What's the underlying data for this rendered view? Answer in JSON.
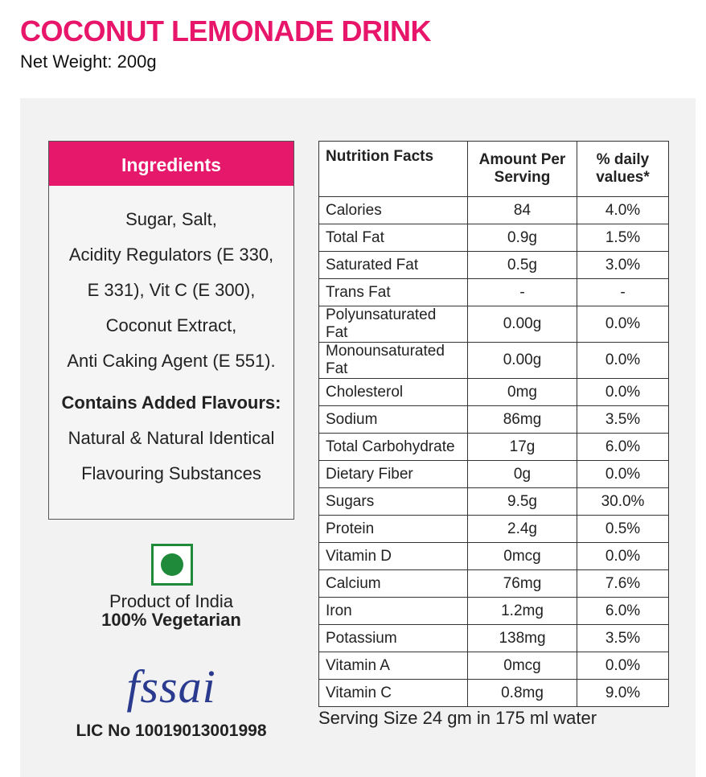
{
  "header": {
    "title": "COCONUT LEMONADE DRINK",
    "subtitle": "Net Weight: 200g"
  },
  "ingredients": {
    "title": "Ingredients",
    "lines": [
      "Sugar, Salt,",
      "Acidity Regulators (E 330,",
      "E 331), Vit C (E 300),",
      "Coconut Extract,",
      "Anti Caking Agent (E 551)."
    ],
    "flavour_title": "Contains Added Flavours:",
    "flavour_lines": [
      "Natural & Natural Identical",
      "Flavouring Substances"
    ]
  },
  "badges": {
    "origin": "Product of India",
    "diet": "100% Vegetarian",
    "logo": "fssai",
    "license": "LIC No 10019013001998"
  },
  "table": {
    "headers": [
      "Nutrition Facts",
      "Amount Per Serving",
      "% daily values*"
    ],
    "rows": [
      [
        "Calories",
        "84",
        "4.0%"
      ],
      [
        "Total Fat",
        "0.9g",
        "1.5%"
      ],
      [
        "Saturated Fat",
        "0.5g",
        "3.0%"
      ],
      [
        "Trans Fat",
        "-",
        "-"
      ],
      [
        "Polyunsaturated Fat",
        "0.00g",
        "0.0%"
      ],
      [
        "Monounsaturated Fat",
        "0.00g",
        "0.0%"
      ],
      [
        "Cholesterol",
        "0mg",
        "0.0%"
      ],
      [
        "Sodium",
        "86mg",
        "3.5%"
      ],
      [
        "Total Carbohydrate",
        "17g",
        "6.0%"
      ],
      [
        "Dietary Fiber",
        "0g",
        "0.0%"
      ],
      [
        "Sugars",
        "9.5g",
        "30.0%"
      ],
      [
        "Protein",
        "2.4g",
        "0.5%"
      ],
      [
        "Vitamin D",
        "0mcg",
        "0.0%"
      ],
      [
        "Calcium",
        "76mg",
        "7.6%"
      ],
      [
        "Iron",
        "1.2mg",
        "6.0%"
      ],
      [
        "Potassium",
        "138mg",
        "3.5%"
      ],
      [
        "Vitamin A",
        "0mcg",
        "0.0%"
      ],
      [
        "Vitamin C",
        "0.8mg",
        "9.0%"
      ]
    ],
    "footnote": "Serving Size 24 gm in 175 ml water"
  }
}
